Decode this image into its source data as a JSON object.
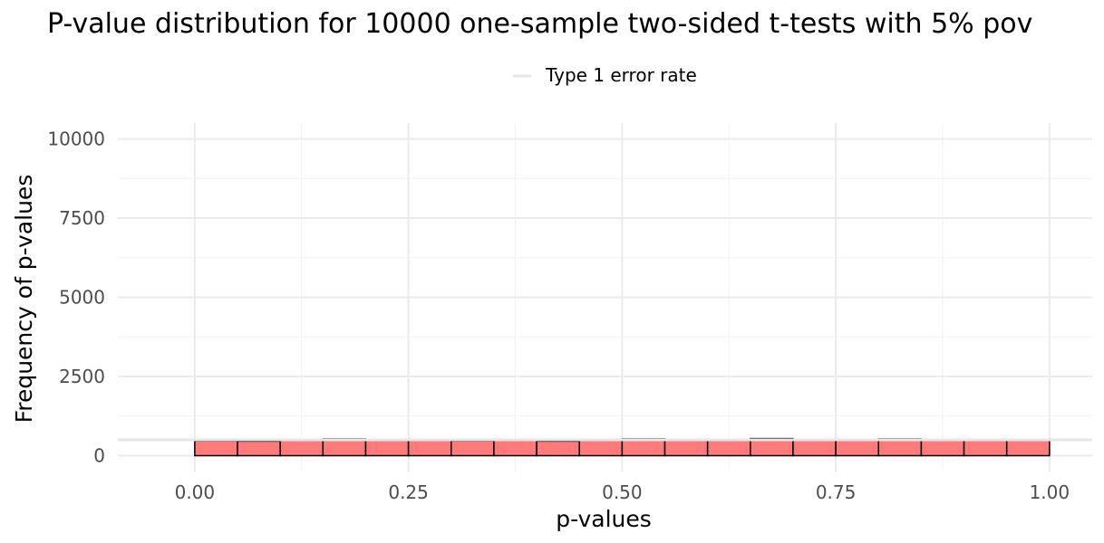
{
  "chart_data": {
    "type": "bar",
    "title": "P-value distribution for 10000 one-sample two-sided t-tests with 5% pov",
    "xlabel": "p-values",
    "ylabel": "Frequency of p-values",
    "xlim": [
      -0.09,
      1.05
    ],
    "ylim": [
      -500,
      10500
    ],
    "x_ticks": [
      0.0,
      0.25,
      0.5,
      0.75,
      1.0
    ],
    "x_tick_labels": [
      "0.00",
      "0.25",
      "0.50",
      "0.75",
      "1.00"
    ],
    "y_ticks": [
      0,
      2500,
      5000,
      7500,
      10000
    ],
    "y_tick_labels": [
      "0",
      "2500",
      "5000",
      "7500",
      "10000"
    ],
    "grid": true,
    "legend": {
      "position": "top",
      "entries": [
        {
          "label": "Type 1 error rate",
          "color": "#e6e6e6",
          "type": "line",
          "value": 500
        }
      ]
    },
    "bin_width": 0.05,
    "bins": [
      0.0,
      0.05,
      0.1,
      0.15,
      0.2,
      0.25,
      0.3,
      0.35,
      0.4,
      0.45,
      0.5,
      0.55,
      0.6,
      0.65,
      0.7,
      0.75,
      0.8,
      0.85,
      0.9,
      0.95
    ],
    "values": [
      470,
      460,
      490,
      530,
      520,
      510,
      470,
      520,
      460,
      500,
      530,
      500,
      500,
      540,
      520,
      500,
      530,
      520,
      500,
      500
    ],
    "bar_color": "#ff7a7a",
    "bar_edge_color": "#000000"
  }
}
